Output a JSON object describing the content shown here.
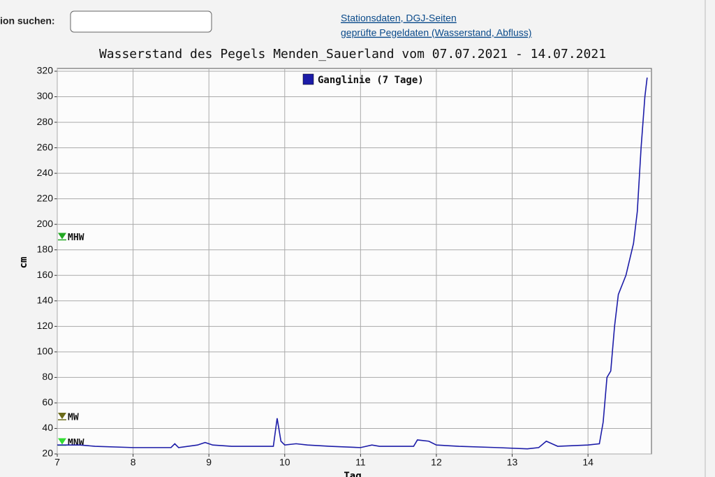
{
  "search": {
    "label": "ion suchen:"
  },
  "links": [
    "Stationsdaten, DGJ-Seiten",
    "geprüfte Pegeldaten (Wasserstand, Abfluss)"
  ],
  "chart_data": {
    "type": "line",
    "title": "Wasserstand des Pegels Menden_Sauerland vom 07.07.2021 - 14.07.2021",
    "x_label": "Tag",
    "y_label": "cm",
    "xlim": [
      7,
      14.8
    ],
    "xticks": [
      7,
      8,
      9,
      10,
      11,
      12,
      13,
      14
    ],
    "ylim": [
      20,
      320
    ],
    "yticks": [
      20,
      40,
      60,
      80,
      100,
      120,
      140,
      160,
      180,
      200,
      220,
      240,
      260,
      280,
      300,
      320
    ],
    "grid": true,
    "legend": "top",
    "series": [
      {
        "name": "Ganglinie (7 Tage)",
        "color": "#1c1ca8",
        "x": [
          7.0,
          7.3,
          7.5,
          8.0,
          8.5,
          8.55,
          8.6,
          8.85,
          8.95,
          9.05,
          9.3,
          9.85,
          9.9,
          9.95,
          10.0,
          10.15,
          10.3,
          10.6,
          11.0,
          11.15,
          11.25,
          11.7,
          11.75,
          11.9,
          12.0,
          12.3,
          12.8,
          13.2,
          13.35,
          13.45,
          13.6,
          14.0,
          14.15,
          14.2,
          14.25,
          14.3,
          14.35,
          14.4,
          14.5,
          14.6,
          14.65,
          14.7,
          14.75,
          14.78
        ],
        "values": [
          27,
          27,
          26,
          25,
          25,
          28,
          25,
          27,
          29,
          27,
          26,
          26,
          48,
          30,
          27,
          28,
          27,
          26,
          25,
          27,
          26,
          26,
          31,
          30,
          27,
          26,
          25,
          24,
          25,
          30,
          26,
          27,
          28,
          45,
          80,
          85,
          120,
          145,
          160,
          185,
          210,
          260,
          300,
          315
        ]
      }
    ],
    "reference_lines": [
      {
        "label": "MHW",
        "value": 190,
        "color": "#22a822"
      },
      {
        "label": "MW",
        "value": 49,
        "color": "#6b6b1a"
      },
      {
        "label": "MNW",
        "value": 29,
        "color": "#33dd33"
      }
    ]
  }
}
